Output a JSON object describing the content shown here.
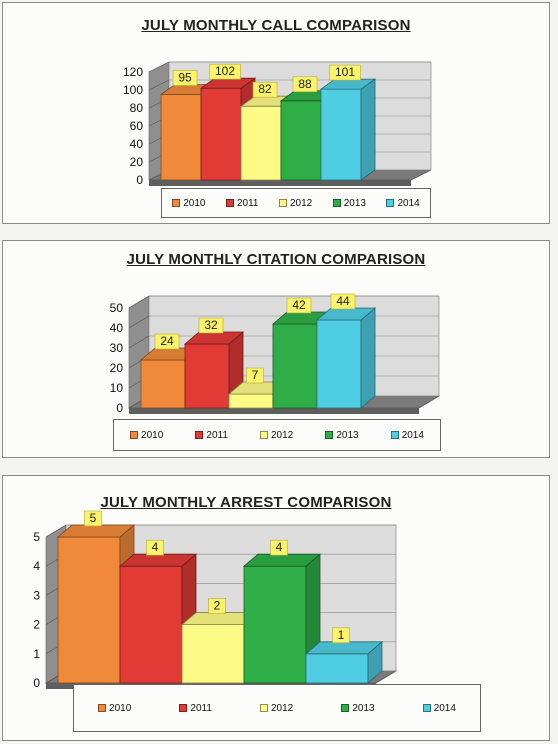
{
  "colors": {
    "2010": "#f08a3a",
    "2011": "#e23a35",
    "2012": "#fdfa86",
    "2013": "#2fae48",
    "2014": "#4fcde2"
  },
  "chart_data": [
    {
      "type": "bar",
      "title": "JULY MONTHLY CALL COMPARISON",
      "categories": [
        "2010",
        "2011",
        "2012",
        "2013",
        "2014"
      ],
      "values": [
        95,
        102,
        82,
        88,
        101
      ],
      "yticks": [
        0,
        20,
        40,
        60,
        80,
        100,
        120
      ],
      "ylim": [
        0,
        120
      ],
      "grid": true,
      "legend": "bottom",
      "style": "3d-column"
    },
    {
      "type": "bar",
      "title": "JULY MONTHLY CITATION COMPARISON",
      "categories": [
        "2010",
        "2011",
        "2012",
        "2013",
        "2014"
      ],
      "values": [
        24,
        32,
        7,
        42,
        44
      ],
      "yticks": [
        0,
        10,
        20,
        30,
        40,
        50
      ],
      "ylim": [
        0,
        50
      ],
      "grid": true,
      "legend": "bottom",
      "style": "3d-column"
    },
    {
      "type": "bar",
      "title": "JULY MONTHLY ARREST COMPARISON",
      "categories": [
        "2010",
        "2011",
        "2012",
        "2013",
        "2014"
      ],
      "values": [
        5,
        4,
        2,
        4,
        1
      ],
      "yticks": [
        0,
        1,
        2,
        3,
        4,
        5
      ],
      "ylim": [
        0,
        5
      ],
      "grid": true,
      "legend": "bottom",
      "style": "3d-column"
    }
  ]
}
